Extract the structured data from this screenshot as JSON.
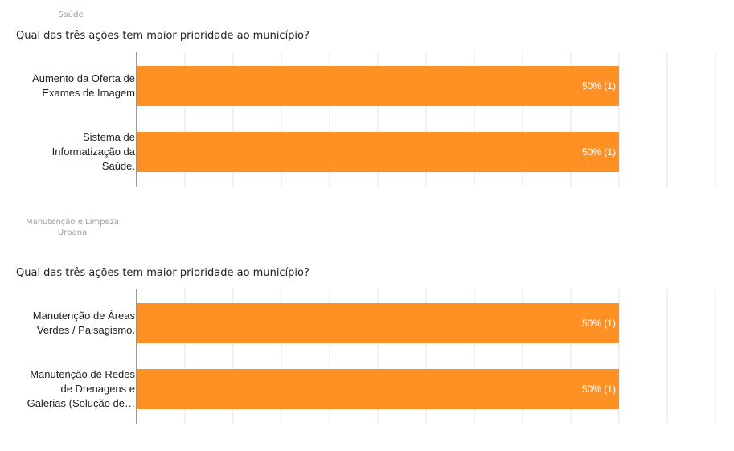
{
  "sections": [
    {
      "label": "Saúde",
      "question": "Qual das três ações tem maior prioridade ao município?",
      "chart_data": {
        "type": "bar",
        "orientation": "horizontal",
        "categories": [
          [
            "Aumento da Oferta de",
            "Exames de Imagem"
          ],
          [
            "Sistema de",
            "Informatização da",
            "Saúde."
          ]
        ],
        "values": [
          1,
          1
        ],
        "percent": [
          50,
          50
        ],
        "data_labels": [
          "50% (1)",
          "50% (1)"
        ],
        "xlim": [
          0,
          60
        ],
        "grid": true,
        "bar_color": "#ff9023"
      }
    },
    {
      "label_lines": [
        "Manutenção e Limpeza",
        "Urbana"
      ],
      "question": "Qual das três ações tem maior prioridade ao município?",
      "chart_data": {
        "type": "bar",
        "orientation": "horizontal",
        "categories": [
          [
            "Manutenção de Áreas",
            "Verdes / Paisagismo."
          ],
          [
            "Manutenção de Redes",
            "de Drenagens e",
            "Galerias (Solução de…"
          ]
        ],
        "values": [
          1,
          1
        ],
        "percent": [
          50,
          50
        ],
        "data_labels": [
          "50% (1)",
          "50% (1)"
        ],
        "xlim": [
          0,
          60
        ],
        "grid": true,
        "bar_color": "#ff9023"
      }
    }
  ]
}
